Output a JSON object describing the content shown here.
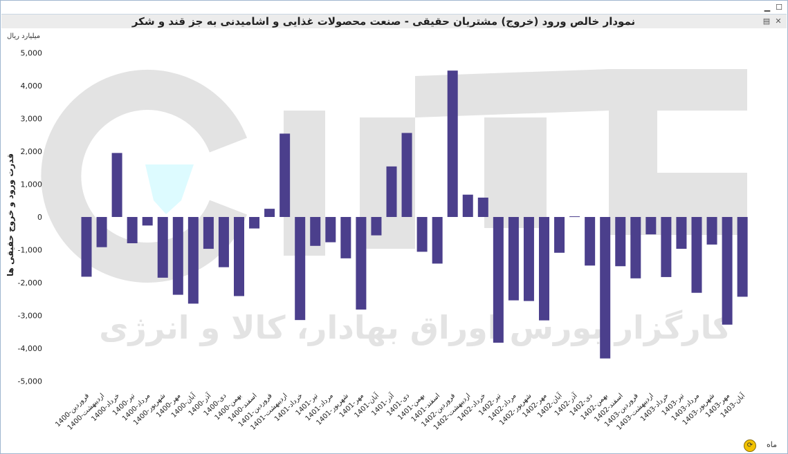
{
  "window": {
    "minimize_icon": "minimize-icon",
    "maximize_icon": "maximize-icon"
  },
  "header": {
    "title": "نمودار خالص ورود (خروج) مشتریان حقیقی - صنعت محصولات غذایی و اشامیدنی به جز قند و شکر",
    "export_icon": "export-icon",
    "excel_icon": "excel-icon"
  },
  "footer": {
    "x_label": "ماه",
    "refresh_icon": "refresh-icon"
  },
  "watermark": {
    "text": "کارگزار بورس اوراق بهادار، کالا و انرژی"
  },
  "colors": {
    "bar": "#4b3f8c",
    "axis_text": "#222222",
    "watermark": "#e3e3e3"
  },
  "chart_data": {
    "type": "bar",
    "title": "نمودار خالص ورود (خروج) مشتریان حقیقی - صنعت محصولات غذایی و اشامیدنی به جز قند و شکر",
    "unit": "میلیارد ریال",
    "ylabel": "قدرت ورود و خروج حقیقی ها",
    "xlabel": "ماه",
    "ylim": [
      -5000,
      5000
    ],
    "yticks": [
      5000,
      4000,
      3000,
      2000,
      1000,
      0,
      -1000,
      -2000,
      -3000,
      -4000,
      -5000
    ],
    "ytick_labels": [
      "5,000",
      "4,000",
      "3,000",
      "2,000",
      "1,000",
      "0",
      "-1,000",
      "-2,000",
      "-3,000",
      "-4,000",
      "-5,000"
    ],
    "grid": false,
    "legend": "none",
    "categories": [
      "1400-فروردین",
      "1400-اردیبهشت",
      "1400-خرداد",
      "1400-تیر",
      "1400-مرداد",
      "1400-شهریور",
      "1400-مهر",
      "1400-آبان",
      "1400-آذر",
      "1400-دی",
      "1400-بهمن",
      "1400-اسفند",
      "1401-فروردین",
      "1401-اردیبهشت",
      "1401-خرداد",
      "1401-تیر",
      "1401-مرداد",
      "1401-شهریور",
      "1401-مهر",
      "1401-آبان",
      "1401-آذر",
      "1401-دی",
      "1401-بهمن",
      "1401-اسفند",
      "1402-فروردین",
      "1402-اردیبهشت",
      "1402-خرداد",
      "1402-تیر",
      "1402-مرداد",
      "1402-شهریور",
      "1402-مهر",
      "1402-آبان",
      "1402-آذر",
      "1402-دی",
      "1402-بهمن",
      "1402-اسفند",
      "1403-فروردین",
      "1403-اردیبهشت",
      "1403-خرداد",
      "1403-تیر",
      "1403-مرداد",
      "1403-شهریور",
      "1403-مهر",
      "1403-آبان"
    ],
    "values": [
      -1820,
      -920,
      1950,
      -800,
      -260,
      -1850,
      -2370,
      -2640,
      -970,
      -1530,
      -2410,
      -350,
      250,
      2540,
      -3140,
      -880,
      -770,
      -1260,
      -2820,
      -560,
      1540,
      2560,
      -1060,
      -1420,
      4460,
      680,
      590,
      -3830,
      -2540,
      -2560,
      -3150,
      -1090,
      20,
      -1480,
      -4310,
      -1500,
      -1870,
      -530,
      -1830,
      -970,
      -2310,
      -840,
      -3280,
      -2430
    ]
  }
}
